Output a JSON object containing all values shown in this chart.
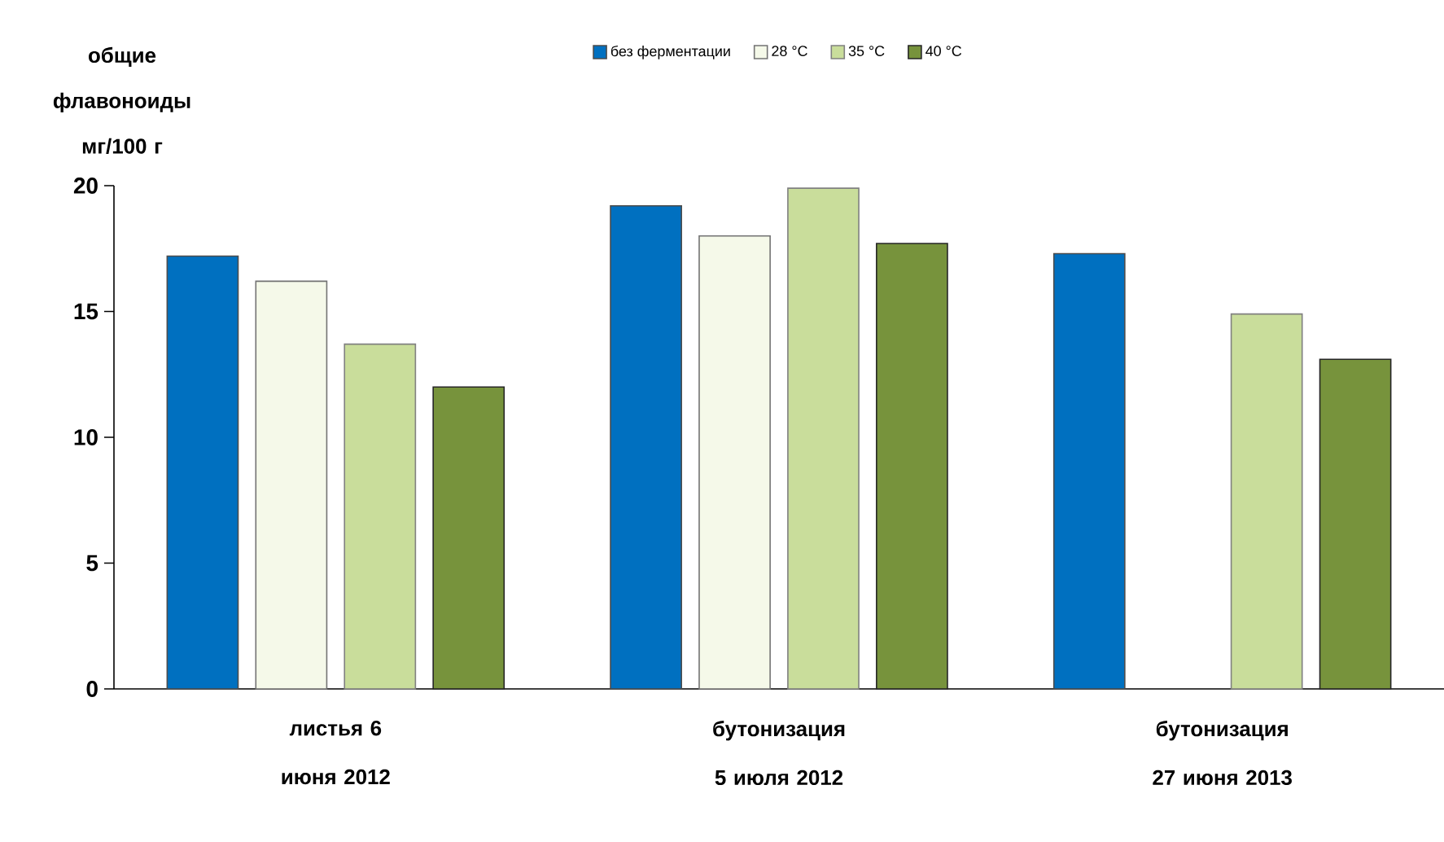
{
  "chart_data": {
    "type": "bar",
    "ylabel": "общие флавоноиды мг/100 г",
    "categories": [
      "листья 6 июня 2012",
      "бутонизация 5 июля 2012",
      "бутонизация 27 июня 2013"
    ],
    "series": [
      {
        "name": "без ферментации",
        "color": "#0070c0",
        "values": [
          17.2,
          19.2,
          17.3
        ]
      },
      {
        "name": "28 °С",
        "color": "#f5f9e9",
        "values": [
          16.2,
          18.0,
          null
        ]
      },
      {
        "name": "35 °С",
        "color": "#c9dd9b",
        "values": [
          13.7,
          19.9,
          14.9
        ]
      },
      {
        "name": "40 °С",
        "color": "#77933c",
        "values": [
          12.0,
          17.7,
          13.1
        ]
      }
    ],
    "ylim": [
      0,
      20
    ],
    "yticks": [
      0,
      5,
      10,
      15,
      20
    ],
    "grid": false,
    "legend": "top"
  }
}
